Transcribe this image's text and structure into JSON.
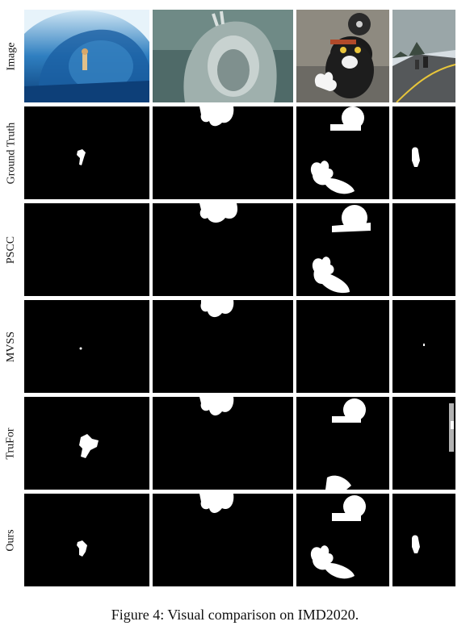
{
  "figure": {
    "row_labels": [
      "Image",
      "Ground Truth",
      "PSCC",
      "MVSS",
      "TruFor",
      "Ours"
    ],
    "caption": "Figure 4: Visual comparison on IMD2020.",
    "image_subjects": [
      "surfer-wave",
      "walrus-statue",
      "cat-with-lamp",
      "road-cyclists"
    ],
    "colors": {
      "mask_bg": "#000000",
      "mask_fg": "#ffffff"
    }
  }
}
